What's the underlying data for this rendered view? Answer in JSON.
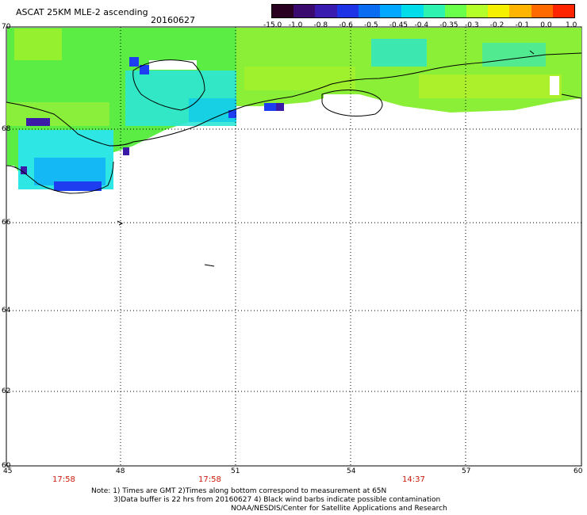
{
  "header": {
    "title": "ASCAT 25KM MLE-2 ascending",
    "date": "20160627"
  },
  "colorbar": {
    "labels": [
      "-15.0",
      "-1.0",
      "-0.8",
      "-0.6",
      "-0.5",
      "-0.45",
      "-0.4",
      "-0.35",
      "-0.3",
      "-0.2",
      "-0.1",
      "0.0",
      "1.0"
    ],
    "colors": [
      "#2a0020",
      "#3b0a6e",
      "#3a1bb0",
      "#1e32e6",
      "#0a6cf0",
      "#00a8ff",
      "#00dcea",
      "#2ef2b0",
      "#6aff4a",
      "#b4ff2a",
      "#f4f000",
      "#ffb400",
      "#ff6a00",
      "#ff2400"
    ]
  },
  "map": {
    "lat_labels": [
      "70",
      "68",
      "66",
      "64",
      "62",
      "60"
    ],
    "lon_labels": [
      "45",
      "48",
      "51",
      "54",
      "57",
      "60"
    ],
    "colors": {
      "green": "#52f046",
      "lime": "#a4f02a",
      "cyan": "#2ee6d4",
      "lightblue": "#14bff2",
      "blue": "#1e3cf0",
      "purple": "#3c1aa8"
    }
  },
  "times": [
    "17:58",
    "17:58",
    "14:37"
  ],
  "notes": {
    "line1": "Note: 1) Times are GMT 2)Times along bottom correspond to measurement at 65N",
    "line2": "3)Data buffer is 22 hrs from 20160627 4) Black wind barbs indicate possible contamination",
    "line3": "NOAA/NESDIS/Center for Satellite Applications and Research"
  }
}
